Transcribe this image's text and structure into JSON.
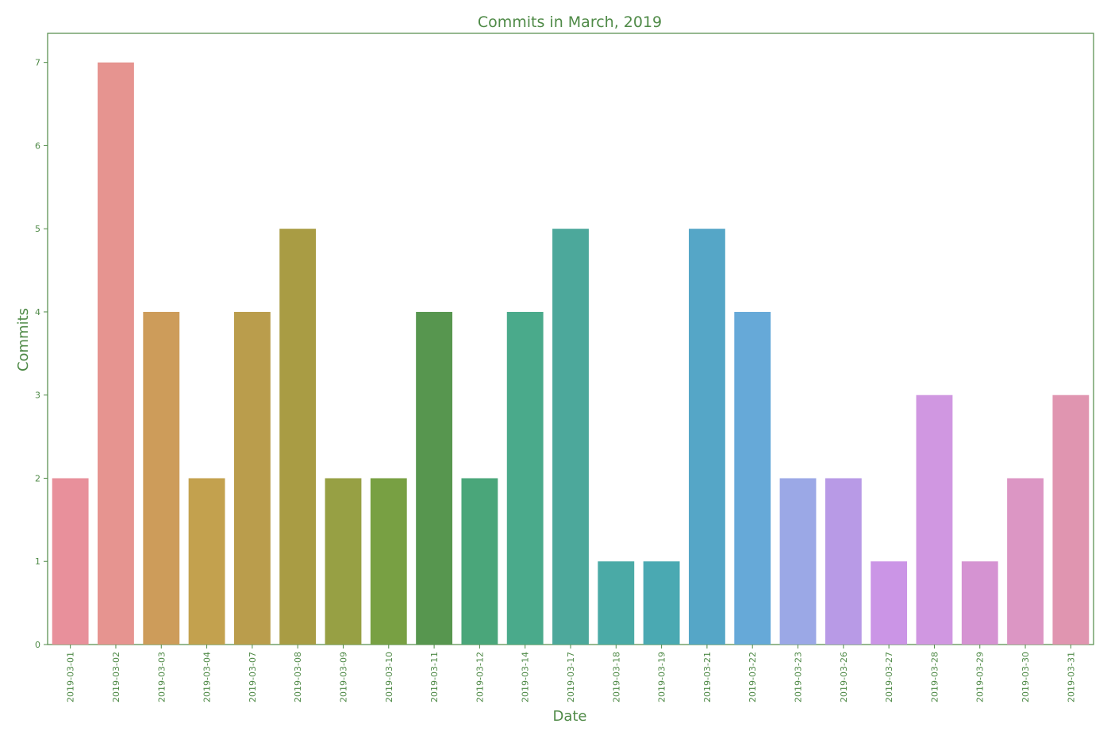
{
  "colors": {
    "text": "#4f8a47",
    "frame": "#4f8a47"
  },
  "chart_data": {
    "type": "bar",
    "title": "Commits in March, 2019",
    "xlabel": "Date",
    "ylabel": "Commits",
    "ylim": [
      0,
      7.35
    ],
    "yticks": [
      0,
      1,
      2,
      3,
      4,
      5,
      6,
      7
    ],
    "grid": false,
    "categories": [
      "2019-03-01",
      "2019-03-02",
      "2019-03-03",
      "2019-03-04",
      "2019-03-07",
      "2019-03-08",
      "2019-03-09",
      "2019-03-10",
      "2019-03-11",
      "2019-03-12",
      "2019-03-14",
      "2019-03-17",
      "2019-03-18",
      "2019-03-19",
      "2019-03-21",
      "2019-03-22",
      "2019-03-23",
      "2019-03-26",
      "2019-03-27",
      "2019-03-28",
      "2019-03-29",
      "2019-03-30",
      "2019-03-31"
    ],
    "values": [
      2,
      7,
      4,
      2,
      4,
      5,
      2,
      2,
      4,
      2,
      4,
      5,
      1,
      1,
      5,
      4,
      2,
      2,
      1,
      3,
      1,
      2,
      3
    ],
    "bar_colors": [
      "#e8909b",
      "#e69490",
      "#cd9c5a",
      "#c3a14e",
      "#ba9d4c",
      "#a99c44",
      "#97a044",
      "#78a043",
      "#57964f",
      "#4aa67a",
      "#4aaa8b",
      "#4ca89b",
      "#4aaaa6",
      "#4aa9b2",
      "#55a6c7",
      "#66a9d8",
      "#9ba8e6",
      "#b89ae6",
      "#cb95e6",
      "#d097e1",
      "#d593d2",
      "#dc96c4",
      "#e095b0"
    ]
  }
}
